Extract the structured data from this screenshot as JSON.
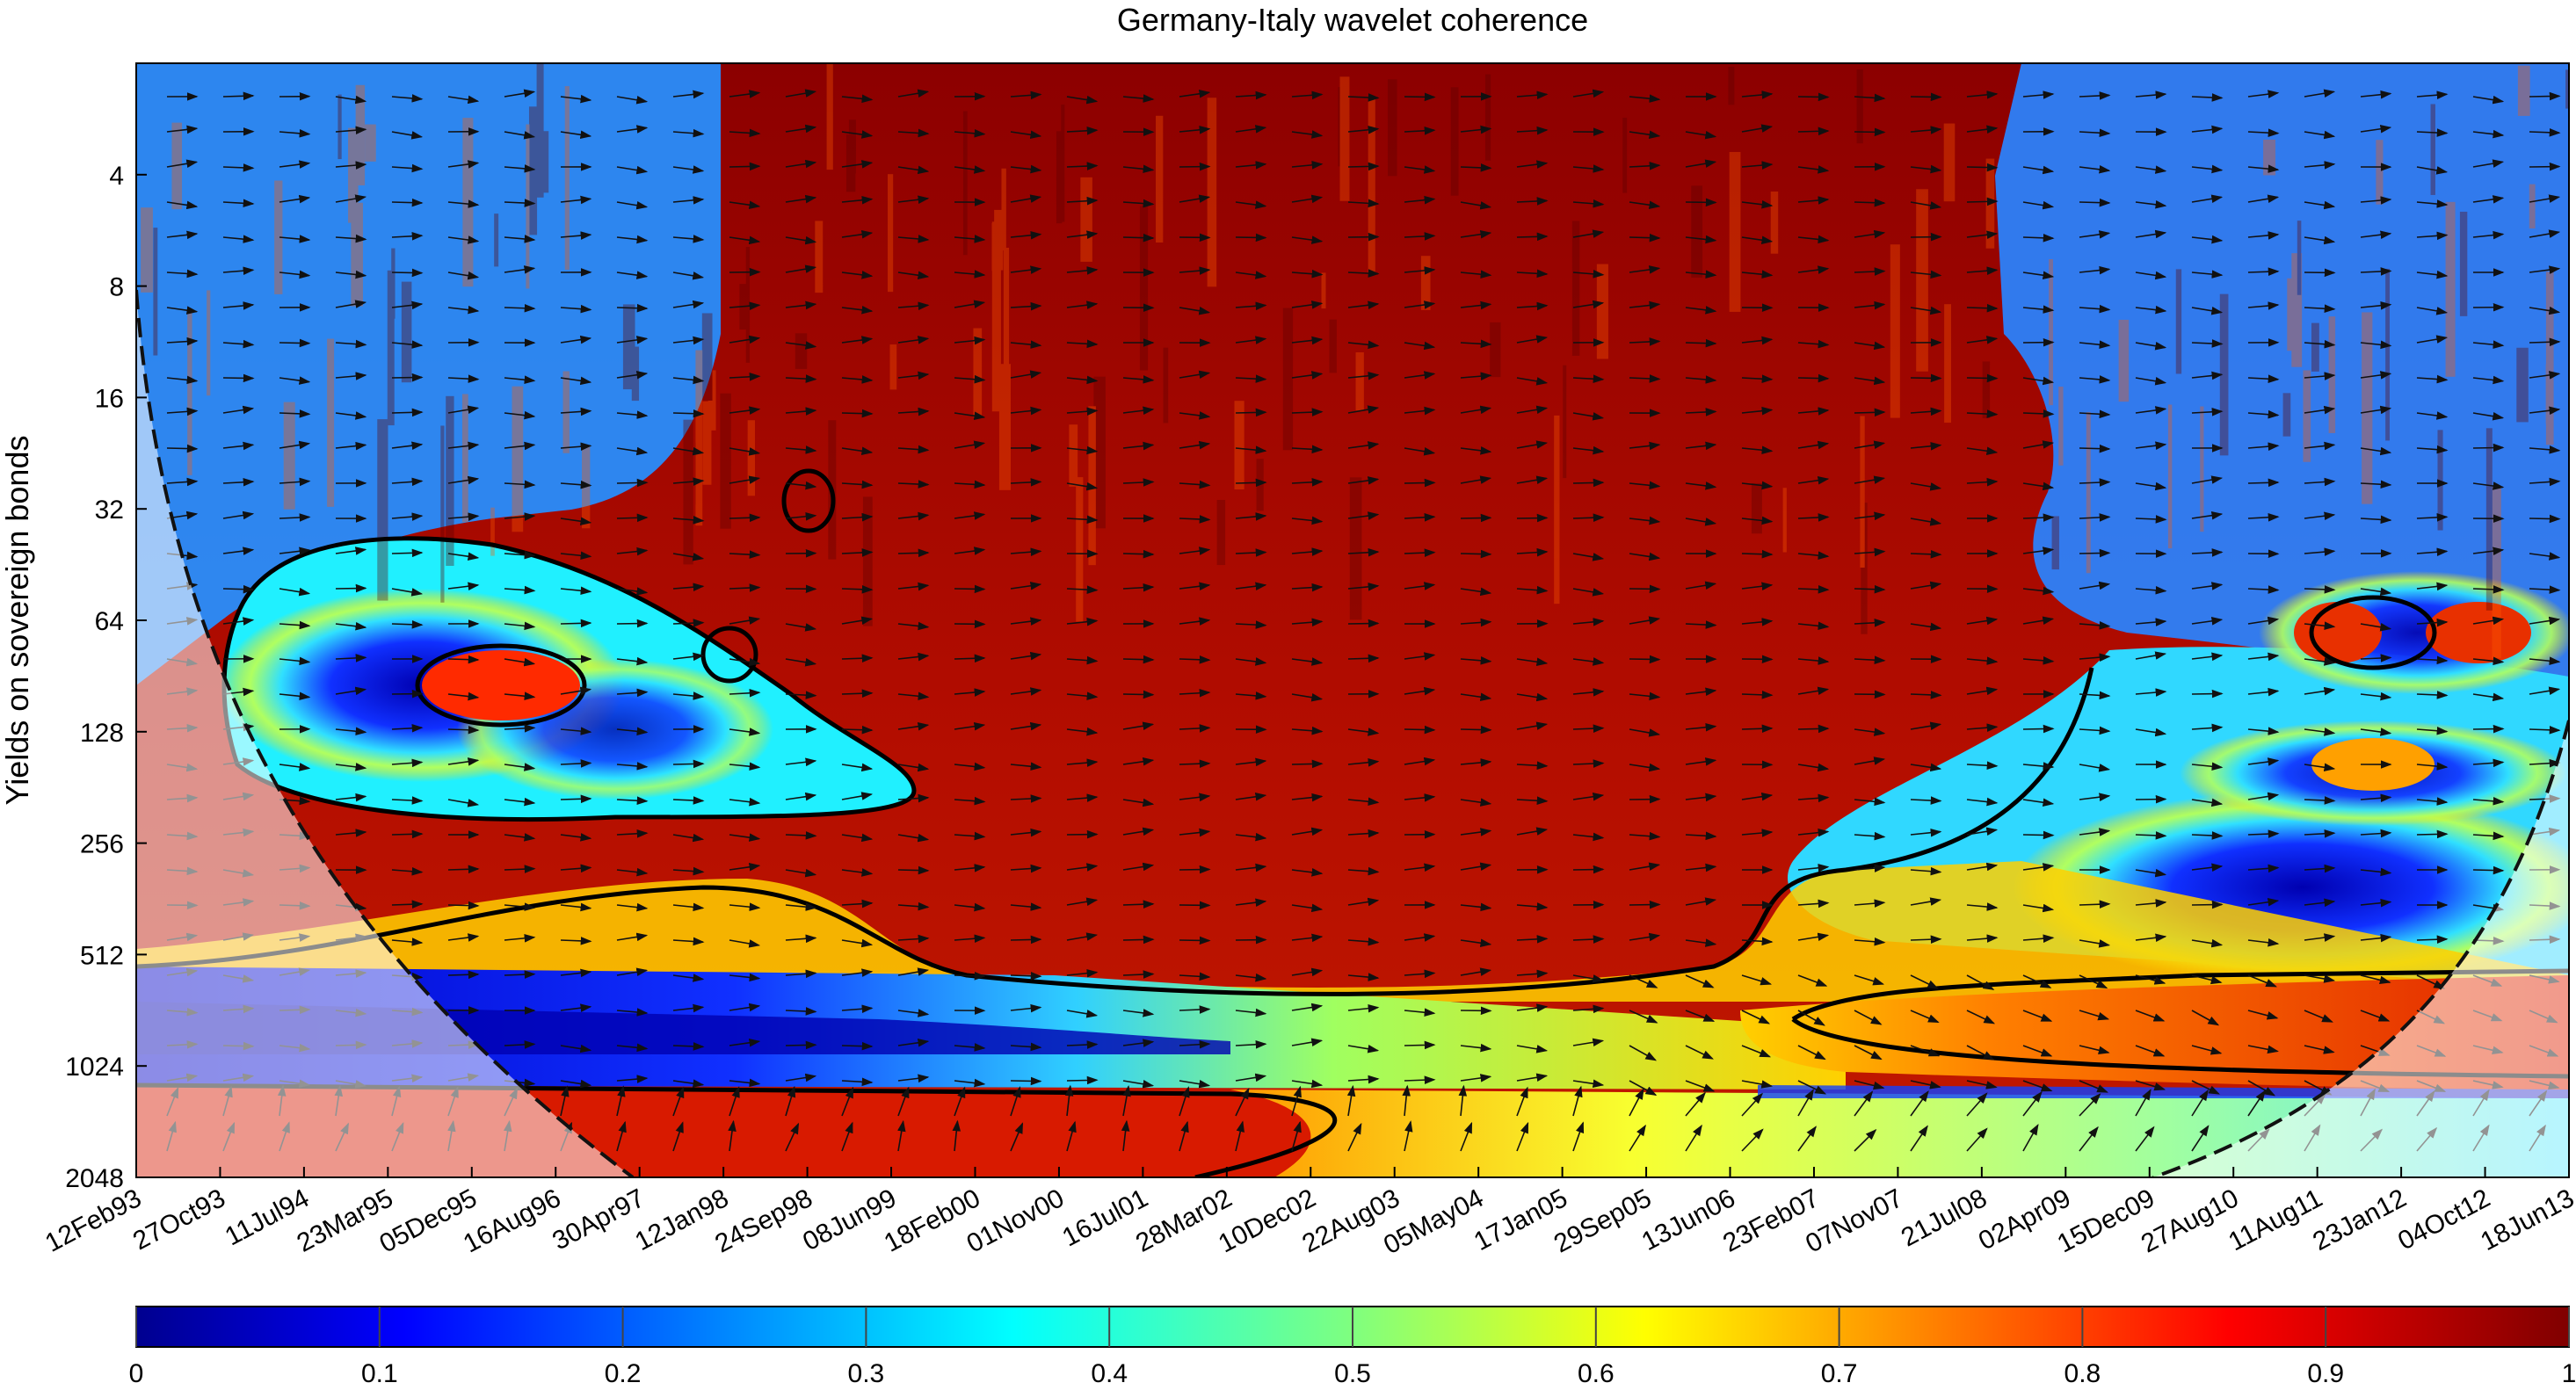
{
  "chart_data": {
    "type": "heatmap",
    "title": "Germany-Italy wavelet coherence",
    "ylabel": "Yields on sovereign bonds",
    "xlabel": "",
    "y_scale": "log2",
    "ylim": [
      2,
      2048
    ],
    "y_reversed": true,
    "y_ticks": [
      "4",
      "8",
      "16",
      "32",
      "64",
      "128",
      "256",
      "512",
      "1024",
      "2048"
    ],
    "x_ticks": [
      "12Feb93",
      "27Oct93",
      "11Jul94",
      "23Mar95",
      "05Dec95",
      "16Aug96",
      "30Apr97",
      "12Jan98",
      "24Sep98",
      "08Jun99",
      "18Feb00",
      "01Nov00",
      "16Jul01",
      "28Mar02",
      "10Dec02",
      "22Aug03",
      "05May04",
      "17Jan05",
      "29Sep05",
      "13Jun06",
      "23Feb07",
      "07Nov07",
      "21Jul08",
      "02Apr09",
      "15Dec09",
      "27Aug10",
      "11Aug11",
      "23Jan12",
      "04Oct12",
      "18Jun13"
    ],
    "colorbar": {
      "range": [
        0,
        1
      ],
      "ticks": [
        "0",
        "0.1",
        "0.2",
        "0.3",
        "0.4",
        "0.5",
        "0.6",
        "0.7",
        "0.8",
        "0.9",
        "1"
      ],
      "colormap": "jet"
    },
    "regions": [
      {
        "x": [
          0.5,
          5.5
        ],
        "y": [
          2,
          30
        ],
        "coherence": 0.3
      },
      {
        "x": [
          0.8,
          8.5
        ],
        "y": [
          40,
          300
        ],
        "coherence": 0.25
      },
      {
        "x": [
          6.5,
          22.5
        ],
        "y": [
          2,
          500
        ],
        "coherence": 0.85
      },
      {
        "x": [
          24,
          29
        ],
        "y": [
          2,
          40
        ],
        "coherence": 0.3
      },
      {
        "x": [
          23.5,
          29
        ],
        "y": [
          100,
          600
        ],
        "coherence": 0.2
      },
      {
        "x": [
          0,
          10
        ],
        "y": [
          600,
          1000
        ],
        "coherence": 0.15
      },
      {
        "x": [
          20,
          29
        ],
        "y": [
          700,
          1100
        ],
        "coherence": 0.8
      },
      {
        "x": [
          0,
          14
        ],
        "y": [
          1100,
          2048
        ],
        "coherence": 0.8
      },
      {
        "x": [
          14,
          29
        ],
        "y": [
          1200,
          2048
        ],
        "coherence": 0.55
      }
    ],
    "cone_of_influence": true,
    "grid": false,
    "legend": "colorbar-bottom"
  }
}
